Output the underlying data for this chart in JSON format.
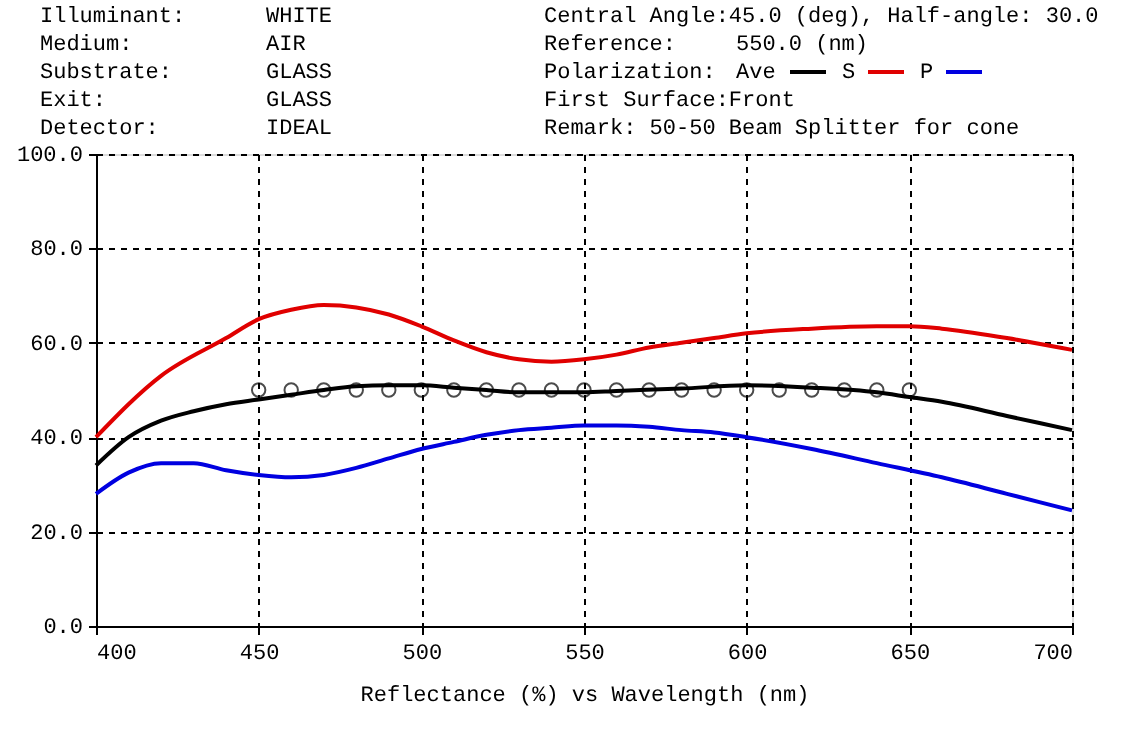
{
  "chart_data": {
    "type": "line",
    "xlabel": "Reflectance (%)  vs  Wavelength (nm)",
    "annotations": [
      "Illuminant:",
      "WHITE",
      "Medium:",
      "AIR",
      "Substrate:",
      "GLASS",
      "Exit:",
      "GLASS",
      "Detector:",
      "IDEAL",
      "Central Angle:45.0 (deg), Half-angle: 30.0",
      "Reference:",
      "550.0 (nm)",
      "Polarization:",
      "First Surface:Front",
      "Remark: 50-50 Beam Splitter for cone"
    ],
    "xlim": [
      400,
      700
    ],
    "xticks": [
      400,
      450,
      500,
      550,
      600,
      650,
      700
    ],
    "ylim": [
      0,
      100
    ],
    "yticks": [
      {
        "value": 0,
        "label": "0.0"
      },
      {
        "value": 20,
        "label": "20.0"
      },
      {
        "value": 40,
        "label": "40.0"
      },
      {
        "value": 60,
        "label": "60.0"
      },
      {
        "value": 80,
        "label": "80.0"
      },
      {
        "value": 100,
        "label": "100.0"
      }
    ],
    "grid": true,
    "legend": "top right",
    "line_style": "solid",
    "marker": "none",
    "series": [
      {
        "name": "Ave",
        "color": "#000000",
        "x": [
          400,
          410,
          420,
          430,
          440,
          450,
          460,
          470,
          480,
          490,
          500,
          510,
          520,
          530,
          540,
          550,
          560,
          580,
          600,
          620,
          640,
          650,
          660,
          680,
          700
        ],
        "values": [
          34,
          40,
          43.5,
          45.5,
          47,
          48,
          49,
          50,
          50.8,
          51,
          51,
          50.5,
          50,
          49.5,
          49.5,
          49.5,
          49.8,
          50.3,
          51,
          50.5,
          49.5,
          48.5,
          47.5,
          44.5,
          41.5
        ]
      },
      {
        "name": "S",
        "color": "#e00000",
        "x": [
          400,
          420,
          440,
          450,
          460,
          470,
          480,
          490,
          500,
          510,
          520,
          530,
          540,
          550,
          560,
          570,
          580,
          590,
          600,
          620,
          640,
          650,
          660,
          680,
          700
        ],
        "values": [
          40,
          53,
          61,
          65,
          67,
          68,
          67.5,
          66,
          63.5,
          60.5,
          58,
          56.5,
          56,
          56.5,
          57.5,
          59,
          60,
          61,
          62,
          63,
          63.5,
          63.5,
          63,
          61,
          58.5
        ]
      },
      {
        "name": "P",
        "color": "#0000e0",
        "x": [
          400,
          410,
          420,
          430,
          440,
          450,
          460,
          470,
          480,
          490,
          500,
          510,
          520,
          530,
          540,
          550,
          560,
          570,
          580,
          590,
          600,
          620,
          640,
          660,
          680,
          700
        ],
        "values": [
          28,
          32.5,
          34.5,
          34.5,
          33,
          32,
          31.5,
          32,
          33.5,
          35.5,
          37.5,
          39,
          40.5,
          41.5,
          42,
          42.5,
          42.5,
          42.2,
          41.5,
          41,
          40,
          37.5,
          34.5,
          31.5,
          28,
          24.5
        ]
      },
      {
        "type": "scatter",
        "marker": "circle",
        "color": "#000000",
        "x": [
          450,
          460,
          470,
          480,
          490,
          500,
          510,
          520,
          530,
          540,
          550,
          560,
          570,
          580,
          590,
          600,
          610,
          620,
          630,
          640,
          650
        ],
        "values": [
          50,
          50,
          50,
          50,
          50,
          50,
          50,
          50,
          50,
          50,
          50,
          50,
          50,
          50,
          50,
          50,
          50,
          50,
          50,
          50,
          50
        ]
      }
    ]
  }
}
